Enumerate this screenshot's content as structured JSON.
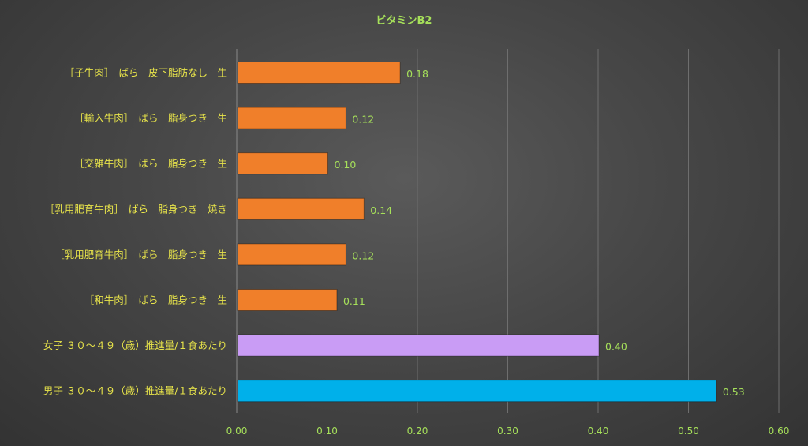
{
  "chart_data": {
    "type": "bar",
    "orientation": "horizontal",
    "title": "ビタミンB2",
    "xlabel": "",
    "ylabel": "",
    "xlim": [
      0,
      0.6
    ],
    "ticks": [
      "0.00",
      "0.10",
      "0.20",
      "0.30",
      "0.40",
      "0.50",
      "0.60"
    ],
    "grid": true,
    "categories": [
      "［子牛肉］　ばら　皮下脂肪なし　生",
      "［輸入牛肉］　ばら　脂身つき　生",
      "［交雑牛肉］　ばら　脂身つき　生",
      "［乳用肥育牛肉］　ばら　脂身つき　焼き",
      "［乳用肥育牛肉］　ばら　脂身つき　生",
      "［和牛肉］　ばら　脂身つき　生",
      "女子 ３０～４９（歳）推進量/１食あたり",
      "男子 ３０～４９（歳）推進量/１食あたり"
    ],
    "values": [
      0.18,
      0.12,
      0.1,
      0.14,
      0.12,
      0.11,
      0.4,
      0.53
    ],
    "value_labels": [
      "0.18",
      "0.12",
      "0.10",
      "0.14",
      "0.12",
      "0.11",
      "0.40",
      "0.53"
    ],
    "colors": [
      "#f07f2a",
      "#f07f2a",
      "#f07f2a",
      "#f07f2a",
      "#f07f2a",
      "#f07f2a",
      "#c99cf5",
      "#00b0ea"
    ]
  }
}
